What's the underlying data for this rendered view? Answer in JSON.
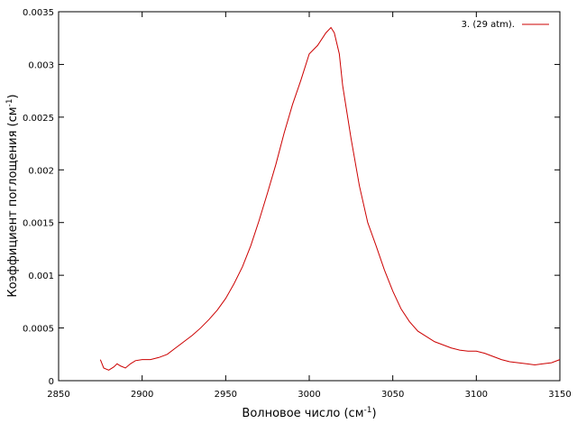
{
  "chart_data": {
    "type": "line",
    "xlabel_main": "Волновое число (см",
    "xlabel_sup": "-1",
    "xlabel_close": ")",
    "ylabel_main": "Коэффициент поглощения (см",
    "ylabel_sup": "-1",
    "ylabel_close": ")",
    "xlim": [
      2850,
      3150
    ],
    "ylim": [
      0,
      0.0035
    ],
    "x_ticks": [
      2850,
      2900,
      2950,
      3000,
      3050,
      3100,
      3150
    ],
    "x_tick_labels": [
      "2850",
      "2900",
      "2950",
      "3000",
      "3050",
      "3100",
      "3150"
    ],
    "y_ticks": [
      0,
      0.0005,
      0.001,
      0.0015,
      0.002,
      0.0025,
      0.003,
      0.0035
    ],
    "y_tick_labels": [
      "0",
      "0.0005",
      "0.001",
      "0.0015",
      "0.002",
      "0.0025",
      "0.003",
      "0.0035"
    ],
    "legend_position": "top-right",
    "grid": false,
    "series": [
      {
        "name": "3. (29 atm).",
        "color": "#cc0000",
        "points": [
          [
            2875,
            0.0002
          ],
          [
            2877,
            0.00012
          ],
          [
            2880,
            0.0001
          ],
          [
            2883,
            0.00013
          ],
          [
            2885,
            0.00016
          ],
          [
            2887,
            0.00014
          ],
          [
            2890,
            0.00012
          ],
          [
            2893,
            0.00016
          ],
          [
            2896,
            0.00019
          ],
          [
            2900,
            0.0002
          ],
          [
            2905,
            0.0002
          ],
          [
            2910,
            0.00022
          ],
          [
            2915,
            0.00025
          ],
          [
            2920,
            0.00031
          ],
          [
            2925,
            0.00037
          ],
          [
            2930,
            0.00043
          ],
          [
            2935,
            0.0005
          ],
          [
            2940,
            0.00058
          ],
          [
            2945,
            0.00067
          ],
          [
            2950,
            0.00078
          ],
          [
            2955,
            0.00092
          ],
          [
            2960,
            0.00108
          ],
          [
            2965,
            0.00128
          ],
          [
            2970,
            0.00152
          ],
          [
            2975,
            0.00178
          ],
          [
            2980,
            0.00205
          ],
          [
            2985,
            0.00235
          ],
          [
            2990,
            0.00262
          ],
          [
            2995,
            0.00285
          ],
          [
            3000,
            0.0031
          ],
          [
            3005,
            0.00318
          ],
          [
            3010,
            0.0033
          ],
          [
            3013,
            0.00335
          ],
          [
            3015,
            0.0033
          ],
          [
            3018,
            0.0031
          ],
          [
            3020,
            0.0028
          ],
          [
            3025,
            0.0023
          ],
          [
            3030,
            0.00185
          ],
          [
            3035,
            0.0015
          ],
          [
            3040,
            0.00128
          ],
          [
            3045,
            0.00105
          ],
          [
            3050,
            0.00085
          ],
          [
            3055,
            0.00068
          ],
          [
            3060,
            0.00056
          ],
          [
            3065,
            0.00047
          ],
          [
            3070,
            0.00042
          ],
          [
            3075,
            0.00037
          ],
          [
            3080,
            0.00034
          ],
          [
            3085,
            0.00031
          ],
          [
            3090,
            0.00029
          ],
          [
            3095,
            0.00028
          ],
          [
            3100,
            0.00028
          ],
          [
            3105,
            0.00026
          ],
          [
            3110,
            0.00023
          ],
          [
            3115,
            0.0002
          ],
          [
            3120,
            0.00018
          ],
          [
            3125,
            0.00017
          ],
          [
            3130,
            0.00016
          ],
          [
            3135,
            0.00015
          ],
          [
            3140,
            0.00016
          ],
          [
            3145,
            0.00017
          ],
          [
            3150,
            0.0002
          ]
        ]
      }
    ]
  }
}
